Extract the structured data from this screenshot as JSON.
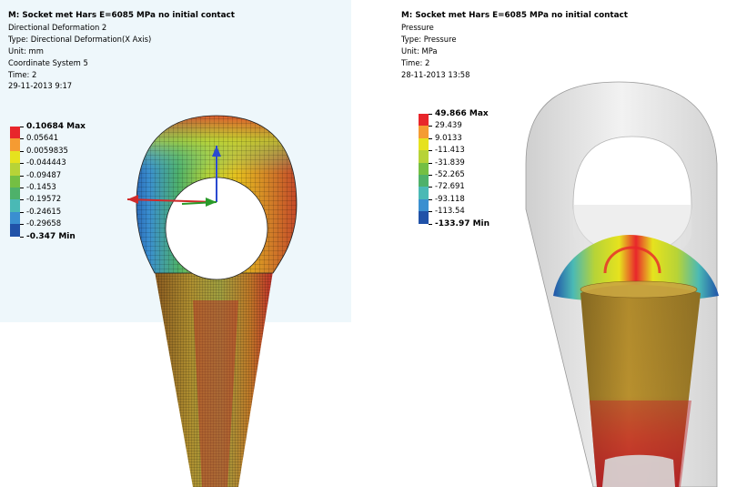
{
  "left": {
    "title": "M: Socket met Hars E=6085 MPa no initial contact",
    "lines": [
      "Directional Deformation 2",
      "Type: Directional Deformation(X Axis)",
      "Unit: mm",
      "Coordinate System 5",
      "Time: 2",
      "29-11-2013 9:17"
    ],
    "legend": {
      "labels": [
        "0.10684 Max",
        "0.05641",
        "0.0059835",
        "-0.044443",
        "-0.09487",
        "-0.1453",
        "-0.19572",
        "-0.24615",
        "-0.29658",
        "-0.347 Min"
      ],
      "colors": [
        "#e8262b",
        "#f59b32",
        "#e6e21e",
        "#b7d337",
        "#74bf43",
        "#4eb16a",
        "#4ab9b5",
        "#3a8fd0",
        "#2052a8"
      ]
    }
  },
  "right": {
    "title": "M: Socket met Hars E=6085 MPa no initial contact",
    "lines": [
      "Pressure",
      "Type: Pressure",
      "Unit: MPa",
      "Time: 2",
      "28-11-2013 13:58"
    ],
    "legend": {
      "labels": [
        "49.866 Max",
        "29.439",
        "9.0133",
        "-11.413",
        "-31.839",
        "-52.265",
        "-72.691",
        "-93.118",
        "-113.54",
        "-133.97 Min"
      ],
      "colors": [
        "#e8262b",
        "#f59b32",
        "#e6e21e",
        "#b7d337",
        "#74bf43",
        "#4eb16a",
        "#4ab9b5",
        "#3a8fd0",
        "#2052a8"
      ]
    }
  }
}
